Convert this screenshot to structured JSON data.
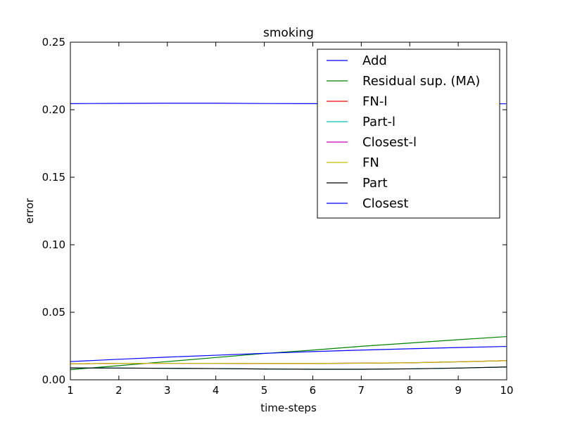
{
  "chart_data": {
    "type": "line",
    "title": "smoking",
    "xlabel": "time-steps",
    "ylabel": "error",
    "xlim": [
      1,
      10
    ],
    "ylim": [
      0,
      0.25
    ],
    "xticks": [
      "1",
      "2",
      "3",
      "4",
      "5",
      "6",
      "7",
      "8",
      "9",
      "10"
    ],
    "yticks": [
      "0.00",
      "0.05",
      "0.10",
      "0.15",
      "0.20",
      "0.25"
    ],
    "legend_position": "top-right",
    "grid": false,
    "x": [
      1,
      2,
      3,
      4,
      5,
      6,
      7,
      8,
      9,
      10
    ],
    "series": [
      {
        "name": "Add",
        "color": "#0000ff",
        "values": [
          0.2045,
          0.2047,
          0.2048,
          0.2048,
          0.2046,
          0.2045,
          0.2044,
          0.2044,
          0.2044,
          0.2044
        ]
      },
      {
        "name": "Residual sup. (MA)",
        "color": "#008000",
        "values": [
          0.0075,
          0.0105,
          0.0135,
          0.0165,
          0.0195,
          0.022,
          0.0248,
          0.0272,
          0.0297,
          0.032
        ]
      },
      {
        "name": "FN-l",
        "color": "#ff0000",
        "values": [
          0.0118,
          0.0122,
          0.0122,
          0.0122,
          0.0121,
          0.0121,
          0.0123,
          0.0126,
          0.0133,
          0.0142
        ]
      },
      {
        "name": "Part-l",
        "color": "#00bfbf",
        "values": [
          0.0088,
          0.0087,
          0.0085,
          0.0083,
          0.008,
          0.0078,
          0.0078,
          0.0081,
          0.0087,
          0.0095
        ]
      },
      {
        "name": "Closest-l",
        "color": "#bf00bf",
        "values": [
          0.0118,
          0.0122,
          0.0122,
          0.0122,
          0.0121,
          0.0121,
          0.0123,
          0.0126,
          0.0133,
          0.0142
        ]
      },
      {
        "name": "FN",
        "color": "#bfbf00",
        "values": [
          0.0118,
          0.0122,
          0.0122,
          0.0122,
          0.0121,
          0.0121,
          0.0123,
          0.0126,
          0.0133,
          0.0142
        ]
      },
      {
        "name": "Part",
        "color": "#000000",
        "values": [
          0.0088,
          0.0087,
          0.0085,
          0.0083,
          0.008,
          0.0078,
          0.0078,
          0.0081,
          0.0087,
          0.0095
        ]
      },
      {
        "name": "Closest",
        "color": "#0000ff",
        "values": [
          0.0135,
          0.0152,
          0.0168,
          0.0182,
          0.0196,
          0.0209,
          0.022,
          0.023,
          0.0239,
          0.0247
        ]
      }
    ]
  }
}
